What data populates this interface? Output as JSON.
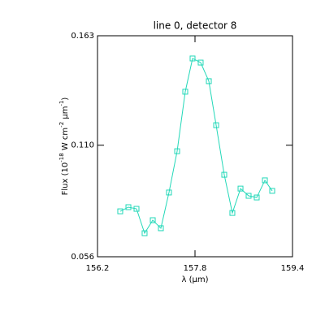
{
  "chart_data": {
    "type": "line",
    "title": "line 0, detector 8",
    "xlabel": "λ (μm)",
    "ylabel_parts": [
      "Flux (10",
      "-18",
      " W cm",
      "-2",
      " μm",
      "-1",
      ")"
    ],
    "x": [
      156.573,
      156.707,
      156.84,
      156.973,
      157.107,
      157.24,
      157.373,
      157.507,
      157.64,
      157.76,
      157.893,
      158.027,
      158.147,
      158.28,
      158.413,
      158.547,
      158.68,
      158.813,
      158.947,
      159.067
    ],
    "series": [
      {
        "name": "line 0",
        "color": "#22d8b8",
        "values": [
          0.078,
          0.08,
          0.0792,
          0.0674,
          0.0737,
          0.0698,
          0.0871,
          0.1071,
          0.1359,
          0.152,
          0.15,
          0.141,
          0.1197,
          0.0957,
          0.0772,
          0.089,
          0.0855,
          0.0847,
          0.093,
          0.0879
        ]
      }
    ],
    "xlim": [
      156.2,
      159.4
    ],
    "xticks": [
      156.2,
      157.8,
      159.4
    ],
    "ylim": [
      0.056,
      0.163
    ],
    "yticks": [
      0.056,
      {
        "value": 0.11,
        "label": "0.110"
      },
      0.163
    ]
  }
}
